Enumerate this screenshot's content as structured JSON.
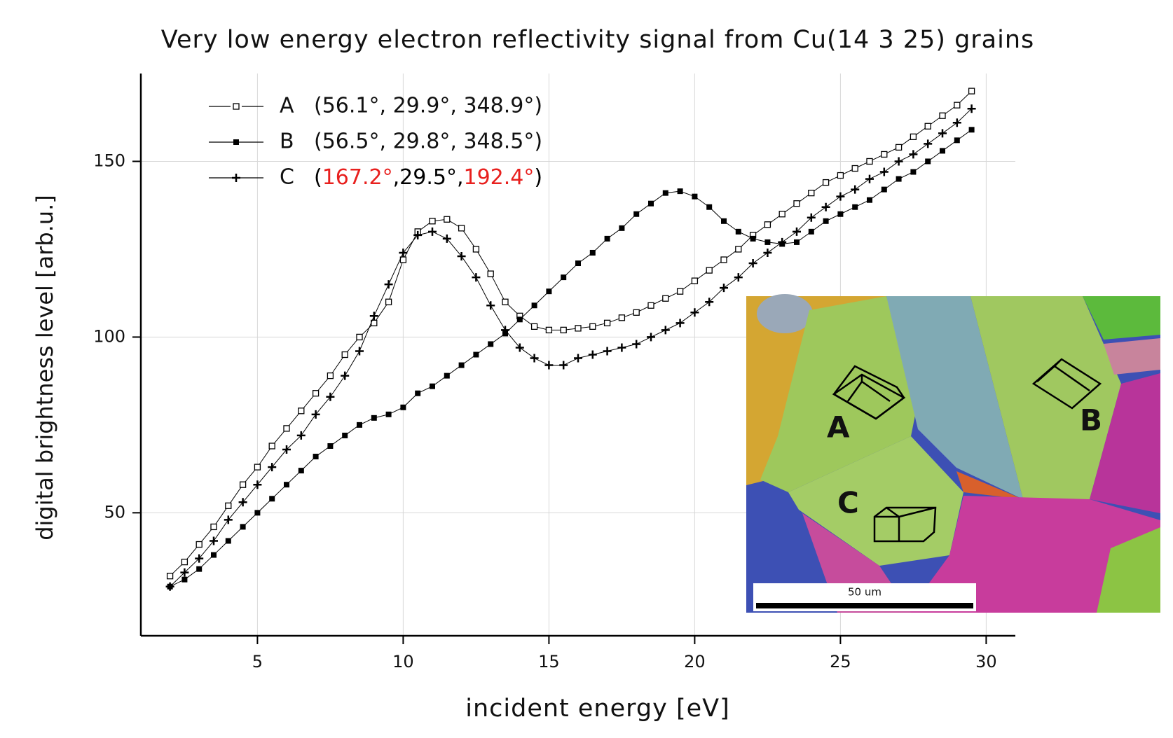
{
  "chart_data": {
    "type": "line",
    "title": "Very low energy electron reflectivity signal from Cu(14 3 25) grains",
    "x_label": "incident energy [eV]",
    "y_label": "digital brightness level [arb.u.]",
    "xlim": [
      1,
      31
    ],
    "xticks": [
      5,
      10,
      15,
      20,
      25,
      30
    ],
    "ylim": [
      15,
      175
    ],
    "yticks": [
      50,
      100,
      150
    ],
    "grid": true,
    "legend": "upper-left",
    "x": [
      2,
      2.5,
      3,
      3.5,
      4,
      4.5,
      5,
      5.5,
      6,
      6.5,
      7,
      7.5,
      8,
      8.5,
      9,
      9.5,
      10,
      10.5,
      11,
      11.5,
      12,
      12.5,
      13,
      13.5,
      14,
      14.5,
      15,
      15.5,
      16,
      16.5,
      17,
      17.5,
      18,
      18.5,
      19,
      19.5,
      20,
      20.5,
      21,
      21.5,
      22,
      22.5,
      23,
      23.5,
      24,
      24.5,
      25,
      25.5,
      26,
      26.5,
      27,
      27.5,
      28,
      28.5,
      29,
      29.5
    ],
    "series": [
      {
        "name": "A",
        "orientation": "(56.1°, 29.9°, 348.9°)",
        "marker": "open-square",
        "color": "#000000",
        "values": [
          32,
          36,
          41,
          46,
          52,
          58,
          63,
          69,
          74,
          79,
          84,
          89,
          95,
          100,
          104,
          110,
          122,
          130,
          133,
          133.5,
          131,
          125,
          118,
          110,
          106,
          103,
          102,
          102,
          102.5,
          103,
          104,
          105.5,
          107,
          109,
          111,
          113,
          116,
          119,
          122,
          125,
          129,
          132,
          135,
          138,
          141,
          144,
          146,
          148,
          150,
          152,
          154,
          157,
          160,
          163,
          166,
          170
        ]
      },
      {
        "name": "B",
        "orientation": "(56.5°, 29.8°, 348.5°)",
        "marker": "filled-square",
        "color": "#000000",
        "values": [
          29,
          31,
          34,
          38,
          42,
          46,
          50,
          54,
          58,
          62,
          66,
          69,
          72,
          75,
          77,
          78,
          80,
          84,
          86,
          89,
          92,
          95,
          98,
          101,
          105,
          109,
          113,
          117,
          121,
          124,
          128,
          131,
          135,
          138,
          141,
          141.5,
          140,
          137,
          133,
          130,
          128,
          127,
          126.5,
          127,
          130,
          133,
          135,
          137,
          139,
          142,
          145,
          147,
          150,
          153,
          156,
          159
        ]
      },
      {
        "name": "C",
        "orientation": [
          {
            "text": "(",
            "color": "#000000"
          },
          {
            "text": "167.2°",
            "color": "#e8201e"
          },
          {
            "text": ",29.5°,",
            "color": "#000000"
          },
          {
            "text": "192.4°",
            "color": "#e8201e"
          },
          {
            "text": ")",
            "color": "#000000"
          }
        ],
        "marker": "plus",
        "color": "#000000",
        "values": [
          29,
          33,
          37,
          42,
          48,
          53,
          58,
          63,
          68,
          72,
          78,
          83,
          89,
          96,
          106,
          115,
          124,
          129,
          130,
          128,
          123,
          117,
          109,
          102,
          97,
          94,
          92,
          92,
          94,
          95,
          96,
          97,
          98,
          100,
          102,
          104,
          107,
          110,
          114,
          117,
          121,
          124,
          127,
          130,
          134,
          137,
          140,
          142,
          145,
          147,
          150,
          152,
          155,
          158,
          161,
          165
        ]
      }
    ],
    "inset": {
      "labels": [
        "A",
        "B",
        "C"
      ],
      "scale_bar": "50 um"
    }
  }
}
